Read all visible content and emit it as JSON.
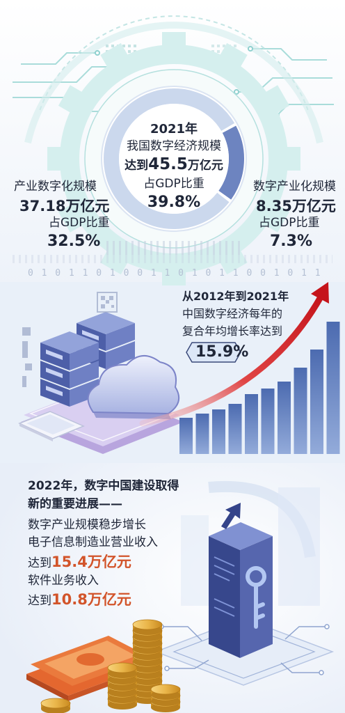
{
  "summary_2021": {
    "year": "2021年",
    "title": "我国数字经济规模",
    "reach_prefix": "达到",
    "reach_value": "45.5",
    "reach_unit": "万亿元",
    "gdp_label": "占GDP比重",
    "gdp_share": "39.8%"
  },
  "industrial_digitalization": {
    "title": "产业数字化规模",
    "value": "37.18万亿元",
    "gdp_label": "占GDP比重",
    "gdp_share": "32.5%"
  },
  "digital_industrialization": {
    "title": "数字产业化规模",
    "value": "8.35万亿元",
    "gdp_label": "占GDP比重",
    "gdp_share": "7.3%"
  },
  "donut": {
    "segments": [
      {
        "value": 8.35,
        "color": "#6d84c0"
      },
      {
        "value": 37.18,
        "color": "#cbd8ed"
      }
    ]
  },
  "binary_strip": "0 1 0 1 1 0 1 0 0 1 1 0 1 0 1 1 0 0 1 0 1 1",
  "growth": {
    "period": "从2012年到2021年",
    "line1": "中国数字经济每年的",
    "line2": "复合年均增长率达到",
    "rate": "15.9%"
  },
  "progress_2022": {
    "headline1": "2022年，数字中国建设取得",
    "headline2": "新的重要进展——",
    "line1": "数字产业规模稳步增长",
    "line2": "电子信息制造业营业收入",
    "reach_prefix": "达到",
    "electronics_value": "15.4万亿元",
    "line3": "软件业务收入",
    "software_value": "10.8万亿元"
  },
  "colors": {
    "text": "#1f2638",
    "accent": "#d2542a",
    "bar": "#5b78b8",
    "arrow": "#d4262c",
    "gear": "#d5efee"
  }
}
